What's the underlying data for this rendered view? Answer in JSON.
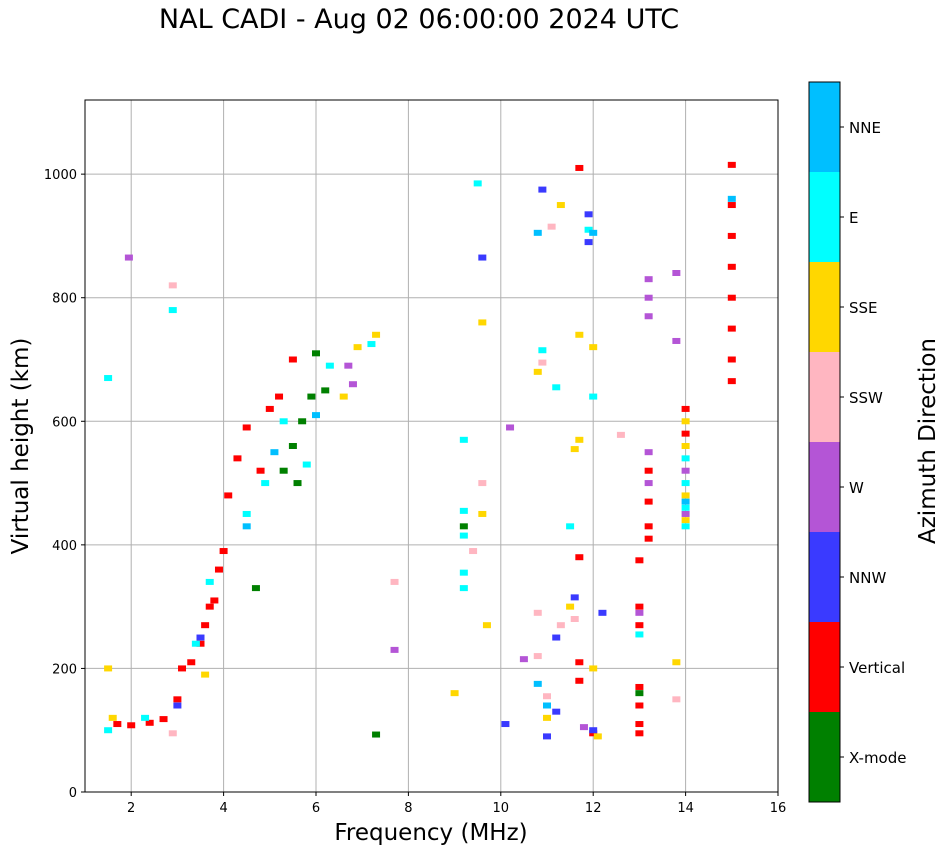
{
  "chart_data": {
    "type": "scatter",
    "title": "NAL CADI - Aug 02 06:00:00 2024 UTC",
    "xlabel": "Frequency (MHz)",
    "ylabel": "Virtual height (km)",
    "xlim": [
      1,
      16
    ],
    "ylim": [
      0,
      1120
    ],
    "xticks": [
      2,
      4,
      6,
      8,
      10,
      12,
      14,
      16
    ],
    "yticks": [
      0,
      200,
      400,
      600,
      800,
      1000
    ],
    "grid": true,
    "colorbar": {
      "label": "Azimuth Direction",
      "categories": [
        {
          "name": "X-mode",
          "color": "#008000"
        },
        {
          "name": "Vertical",
          "color": "#ff0000"
        },
        {
          "name": "NNW",
          "color": "#3a3aff"
        },
        {
          "name": "W",
          "color": "#b455d6"
        },
        {
          "name": "SSW",
          "color": "#ffb6c1"
        },
        {
          "name": "SSE",
          "color": "#ffd700"
        },
        {
          "name": "E",
          "color": "#00ffff"
        },
        {
          "name": "NNE",
          "color": "#00bfff"
        }
      ]
    },
    "series": [
      {
        "name": "Vertical",
        "points": [
          [
            1.7,
            110
          ],
          [
            2.0,
            108
          ],
          [
            2.4,
            112
          ],
          [
            2.7,
            118
          ],
          [
            3.0,
            150
          ],
          [
            3.1,
            200
          ],
          [
            3.3,
            210
          ],
          [
            3.5,
            240
          ],
          [
            3.6,
            270
          ],
          [
            3.7,
            300
          ],
          [
            3.8,
            310
          ],
          [
            3.9,
            360
          ],
          [
            4.0,
            390
          ],
          [
            4.1,
            480
          ],
          [
            4.3,
            540
          ],
          [
            4.5,
            590
          ],
          [
            4.8,
            520
          ],
          [
            5.0,
            620
          ],
          [
            5.2,
            640
          ],
          [
            5.5,
            700
          ],
          [
            13.0,
            375
          ],
          [
            13.0,
            300
          ],
          [
            13.0,
            270
          ],
          [
            13.0,
            170
          ],
          [
            13.0,
            140
          ],
          [
            13.0,
            110
          ],
          [
            13.0,
            95
          ],
          [
            13.2,
            520
          ],
          [
            13.2,
            470
          ],
          [
            13.2,
            430
          ],
          [
            13.2,
            410
          ],
          [
            12.0,
            95
          ],
          [
            11.7,
            380
          ],
          [
            11.7,
            210
          ],
          [
            11.7,
            180
          ],
          [
            11.7,
            1010
          ],
          [
            15.0,
            1015
          ],
          [
            15.0,
            950
          ],
          [
            15.0,
            900
          ],
          [
            15.0,
            850
          ],
          [
            15.0,
            800
          ],
          [
            15.0,
            750
          ],
          [
            15.0,
            700
          ],
          [
            15.0,
            665
          ],
          [
            14.0,
            620
          ],
          [
            14.0,
            580
          ]
        ]
      },
      {
        "name": "X-mode",
        "points": [
          [
            5.3,
            520
          ],
          [
            5.5,
            560
          ],
          [
            5.7,
            600
          ],
          [
            5.9,
            640
          ],
          [
            6.0,
            710
          ],
          [
            6.2,
            650
          ],
          [
            5.6,
            500
          ],
          [
            4.7,
            330
          ],
          [
            13.0,
            160
          ],
          [
            9.2,
            430
          ],
          [
            7.3,
            93
          ]
        ]
      },
      {
        "name": "NNW",
        "points": [
          [
            3.0,
            140
          ],
          [
            3.5,
            250
          ],
          [
            11.2,
            250
          ],
          [
            11.2,
            130
          ],
          [
            11.0,
            90
          ],
          [
            10.1,
            110
          ],
          [
            12.0,
            100
          ],
          [
            12.2,
            290
          ],
          [
            11.6,
            315
          ],
          [
            11.9,
            935
          ],
          [
            11.9,
            890
          ],
          [
            10.9,
            975
          ],
          [
            9.6,
            865
          ]
        ]
      },
      {
        "name": "W",
        "points": [
          [
            13.2,
            830
          ],
          [
            13.2,
            800
          ],
          [
            13.2,
            770
          ],
          [
            13.2,
            550
          ],
          [
            13.2,
            500
          ],
          [
            13.0,
            290
          ],
          [
            6.7,
            690
          ],
          [
            6.8,
            660
          ],
          [
            10.5,
            215
          ],
          [
            10.2,
            590
          ],
          [
            11.8,
            105
          ],
          [
            13.8,
            840
          ],
          [
            13.8,
            730
          ],
          [
            14.0,
            450
          ],
          [
            14.0,
            520
          ],
          [
            7.7,
            230
          ],
          [
            1.95,
            865
          ]
        ]
      },
      {
        "name": "SSW",
        "points": [
          [
            2.9,
            95
          ],
          [
            7.7,
            340
          ],
          [
            10.8,
            290
          ],
          [
            10.8,
            220
          ],
          [
            11.6,
            280
          ],
          [
            11.3,
            270
          ],
          [
            11.0,
            155
          ],
          [
            12.6,
            578
          ],
          [
            13.8,
            150
          ],
          [
            9.4,
            390
          ],
          [
            9.6,
            500
          ],
          [
            11.1,
            915
          ],
          [
            10.9,
            695
          ],
          [
            2.9,
            820
          ]
        ]
      },
      {
        "name": "SSE",
        "points": [
          [
            1.5,
            200
          ],
          [
            1.6,
            120
          ],
          [
            3.6,
            190
          ],
          [
            6.6,
            640
          ],
          [
            6.9,
            720
          ],
          [
            7.3,
            740
          ],
          [
            9.0,
            160
          ],
          [
            9.6,
            450
          ],
          [
            9.7,
            270
          ],
          [
            11.0,
            120
          ],
          [
            11.3,
            950
          ],
          [
            11.5,
            300
          ],
          [
            11.7,
            740
          ],
          [
            11.7,
            570
          ],
          [
            12.0,
            720
          ],
          [
            12.0,
            200
          ],
          [
            12.1,
            90
          ],
          [
            13.8,
            210
          ],
          [
            14.0,
            600
          ],
          [
            14.0,
            560
          ],
          [
            14.0,
            480
          ],
          [
            14.0,
            440
          ],
          [
            9.6,
            760
          ],
          [
            10.8,
            680
          ],
          [
            11.6,
            555
          ]
        ]
      },
      {
        "name": "E",
        "points": [
          [
            1.5,
            670
          ],
          [
            1.5,
            100
          ],
          [
            2.3,
            120
          ],
          [
            2.9,
            780
          ],
          [
            3.4,
            240
          ],
          [
            3.7,
            340
          ],
          [
            4.5,
            450
          ],
          [
            4.9,
            500
          ],
          [
            5.3,
            600
          ],
          [
            5.8,
            530
          ],
          [
            6.3,
            690
          ],
          [
            7.2,
            725
          ],
          [
            9.2,
            570
          ],
          [
            9.2,
            455
          ],
          [
            9.2,
            415
          ],
          [
            9.2,
            355
          ],
          [
            9.2,
            330
          ],
          [
            10.9,
            715
          ],
          [
            11.5,
            430
          ],
          [
            12.0,
            640
          ],
          [
            13.0,
            255
          ],
          [
            14.0,
            540
          ],
          [
            14.0,
            500
          ],
          [
            14.0,
            460
          ],
          [
            14.0,
            430
          ],
          [
            11.2,
            655
          ],
          [
            9.5,
            985
          ],
          [
            11.9,
            910
          ]
        ]
      },
      {
        "name": "NNE",
        "points": [
          [
            4.5,
            430
          ],
          [
            5.1,
            550
          ],
          [
            6.0,
            610
          ],
          [
            10.8,
            905
          ],
          [
            12.0,
            905
          ],
          [
            14.0,
            470
          ],
          [
            15.0,
            960
          ],
          [
            10.8,
            175
          ],
          [
            11.0,
            140
          ]
        ]
      }
    ]
  }
}
